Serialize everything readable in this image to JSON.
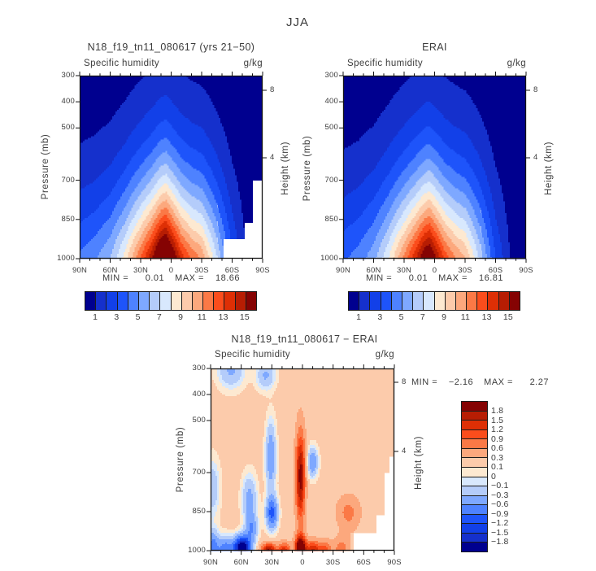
{
  "chart_data": {
    "type": "heatmap",
    "season_title": "JJA",
    "x_axis": {
      "tick_labels": [
        "90N",
        "60N",
        "30N",
        "0",
        "30S",
        "60S",
        "90S"
      ],
      "minor_tick_interval_deg": 10,
      "range_deg": [
        90,
        -90
      ]
    },
    "y_axis_left": {
      "label": "Pressure (mb)",
      "ticks": [
        300,
        400,
        500,
        700,
        850,
        1000
      ],
      "range": [
        300,
        1000
      ]
    },
    "y_axis_right": {
      "label": "Height (km)",
      "ticks": [
        8,
        4
      ]
    },
    "palette": [
      "#00008f",
      "#1530cc",
      "#1240e8",
      "#1e54fa",
      "#4e82ff",
      "#7ea8ff",
      "#b4ccfa",
      "#d8e8fd",
      "#fde9d1",
      "#fccbab",
      "#fca87d",
      "#fb7946",
      "#fb4d1c",
      "#de2f05",
      "#b71d03",
      "#850303"
    ],
    "contour_levels_gkg": [
      1,
      2,
      3,
      4,
      5,
      6,
      7,
      8,
      9,
      10,
      11,
      12,
      13,
      14,
      15
    ],
    "colorbar_tick_labels": [
      "1",
      "3",
      "5",
      "7",
      "9",
      "11",
      "13",
      "15"
    ],
    "diff_levels_gkg": [
      -1.8,
      -1.5,
      -1.2,
      -0.9,
      -0.6,
      -0.3,
      -0.1,
      0,
      0.1,
      0.3,
      0.6,
      0.9,
      1.2,
      1.5,
      1.8
    ],
    "diff_colorbar_labels_top_to_bottom": [
      "1.8",
      "1.5",
      "1.2",
      "0.9",
      "0.6",
      "0.3",
      "0.1",
      "0",
      "−0.1",
      "−0.3",
      "−0.6",
      "−0.9",
      "−1.2",
      "−1.5",
      "−1.8"
    ],
    "panels": [
      {
        "key": "model",
        "title": "N18_f19_tn11_080617 (yrs 21−50)",
        "subtitle": "Specific humidity",
        "units": "g/kg",
        "stats": {
          "min_label": "MIN =",
          "min": "0.01",
          "max_label": "MAX =",
          "max": "18.66"
        },
        "field": {
          "surface_lats": [
            90,
            75,
            60,
            45,
            30,
            20,
            10,
            5,
            0,
            -10,
            -20,
            -30,
            -45,
            -60,
            -75,
            -90
          ],
          "surface_q_gkg": [
            4.2,
            4.8,
            6.0,
            8.5,
            12.0,
            14.5,
            17.8,
            18.6,
            16.8,
            13.5,
            11.8,
            10.8,
            7.0,
            3.2,
            0.8,
            0.3
          ],
          "scale_height_mb": 330,
          "shape_exponent": 1.25
        },
        "terrain_mask_steps": [
          {
            "south_of_lat": -52,
            "below_p_mb": 928
          },
          {
            "south_of_lat": -72,
            "below_p_mb": 860
          },
          {
            "south_of_lat": -80,
            "below_p_mb": 700
          }
        ]
      },
      {
        "key": "erai",
        "title": "ERAI",
        "subtitle": "Specific humidity",
        "units": "g/kg",
        "stats": {
          "min_label": "MIN =",
          "min": "0.01",
          "max_label": "MAX =",
          "max": "16.81"
        },
        "field": {
          "surface_lats": [
            90,
            75,
            60,
            45,
            30,
            20,
            10,
            5,
            0,
            -10,
            -20,
            -30,
            -45,
            -60,
            -75,
            -90
          ],
          "surface_q_gkg": [
            3.8,
            4.4,
            5.6,
            8.0,
            11.2,
            13.5,
            16.1,
            16.8,
            15.4,
            12.6,
            11.0,
            10.0,
            6.6,
            3.0,
            0.9,
            0.4
          ],
          "scale_height_mb": 330,
          "shape_exponent": 1.25
        },
        "terrain_mask_steps": []
      },
      {
        "key": "diff",
        "title": "N18_f19_tn11_080617 − ERAI",
        "subtitle": "Specific humidity",
        "units": "g/kg",
        "stats": {
          "min_label": "MIN =",
          "min": "−2.16",
          "max_label": "MAX =",
          "max": "2.27"
        },
        "background_bias_gkg": 0.16,
        "anomalies": [
          {
            "lat": 59,
            "p": 990,
            "amp": -2.6,
            "lat_sigma": 7.5,
            "p_sigma": 42
          },
          {
            "lat": 75,
            "p": 1000,
            "amp": -1.0,
            "lat_sigma": 8,
            "p_sigma": 50
          },
          {
            "lat": 88,
            "p": 985,
            "amp": -0.9,
            "lat_sigma": 6,
            "p_sigma": 60
          },
          {
            "lat": 50,
            "p": 915,
            "amp": -0.7,
            "lat_sigma": 6,
            "p_sigma": 55
          },
          {
            "lat": 52,
            "p": 800,
            "amp": -0.55,
            "lat_sigma": 7,
            "p_sigma": 90
          },
          {
            "lat": 30,
            "p": 855,
            "amp": -1.15,
            "lat_sigma": 5.5,
            "p_sigma": 60
          },
          {
            "lat": 31,
            "p": 640,
            "amp": -0.7,
            "lat_sigma": 5,
            "p_sigma": 130
          },
          {
            "lat": -10,
            "p": 660,
            "amp": -0.75,
            "lat_sigma": 5,
            "p_sigma": 55
          },
          {
            "lat": 70,
            "p": 305,
            "amp": -0.5,
            "lat_sigma": 13,
            "p_sigma": 70
          },
          {
            "lat": 36,
            "p": 325,
            "amp": -0.5,
            "lat_sigma": 9,
            "p_sigma": 55
          },
          {
            "lat": 88,
            "p": 760,
            "amp": -0.4,
            "lat_sigma": 7,
            "p_sigma": 110
          },
          {
            "lat": 2,
            "p": 988,
            "amp": 2.4,
            "lat_sigma": 5,
            "p_sigma": 45
          },
          {
            "lat": 2,
            "p": 715,
            "amp": 1.8,
            "lat_sigma": 4.5,
            "p_sigma": 165
          },
          {
            "lat": 33,
            "p": 1000,
            "amp": 1.7,
            "lat_sigma": 7,
            "p_sigma": 27
          },
          {
            "lat": 18,
            "p": 1000,
            "amp": 1.2,
            "lat_sigma": 6,
            "p_sigma": 30
          },
          {
            "lat": -10,
            "p": 1000,
            "amp": 1.4,
            "lat_sigma": 7,
            "p_sigma": 36
          },
          {
            "lat": -22,
            "p": 1000,
            "amp": 0.9,
            "lat_sigma": 6,
            "p_sigma": 36
          },
          {
            "lat": -38,
            "p": 995,
            "amp": 0.6,
            "lat_sigma": 8,
            "p_sigma": 45
          },
          {
            "lat": -45,
            "p": 855,
            "amp": 0.55,
            "lat_sigma": 11,
            "p_sigma": 65
          }
        ],
        "terrain_mask_steps": [
          {
            "south_of_lat": -50,
            "below_p_mb": 930
          },
          {
            "south_of_lat": -72,
            "below_p_mb": 865
          },
          {
            "south_of_lat": -80,
            "below_p_mb": 700
          },
          {
            "south_of_lat": -86,
            "below_p_mb": 640
          }
        ]
      }
    ]
  }
}
